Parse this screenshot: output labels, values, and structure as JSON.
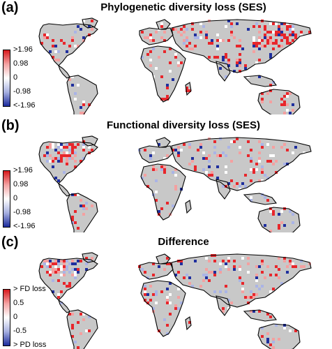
{
  "panels": [
    {
      "letter": "(a)",
      "title": "Phylogenetic diversity loss (SES)",
      "legend": {
        "labels": [
          ">1.96",
          "0.98",
          "0",
          "-0.98",
          "<-1.96"
        ],
        "colors": [
          "#d7191c",
          "#f4a3a3",
          "#ffffff",
          "#a7b0e0",
          "#1a2a9c"
        ]
      }
    },
    {
      "letter": "(b)",
      "title": "Functional diversity loss (SES)",
      "legend": {
        "labels": [
          ">1.96",
          "0.98",
          "0",
          "-0.98",
          "<-1.96"
        ],
        "colors": [
          "#d7191c",
          "#f4a3a3",
          "#ffffff",
          "#a7b0e0",
          "#1a2a9c"
        ]
      }
    },
    {
      "letter": "(c)",
      "title": "Difference",
      "legend": {
        "labels": [
          "> FD loss",
          "0.5",
          "0",
          "-0.5",
          "> PD loss"
        ],
        "colors": [
          "#d7191c",
          "#f4a3a3",
          "#ffffff",
          "#a7b0e0",
          "#1a2a9c"
        ]
      }
    }
  ],
  "colors": {
    "land": "#c8c8c8",
    "coast": "#000000",
    "high": "#e8262b",
    "mid_high": "#f4a0a0",
    "neutral": "#ffffff",
    "mid_low": "#aab4e6",
    "low": "#1f2f9e"
  }
}
